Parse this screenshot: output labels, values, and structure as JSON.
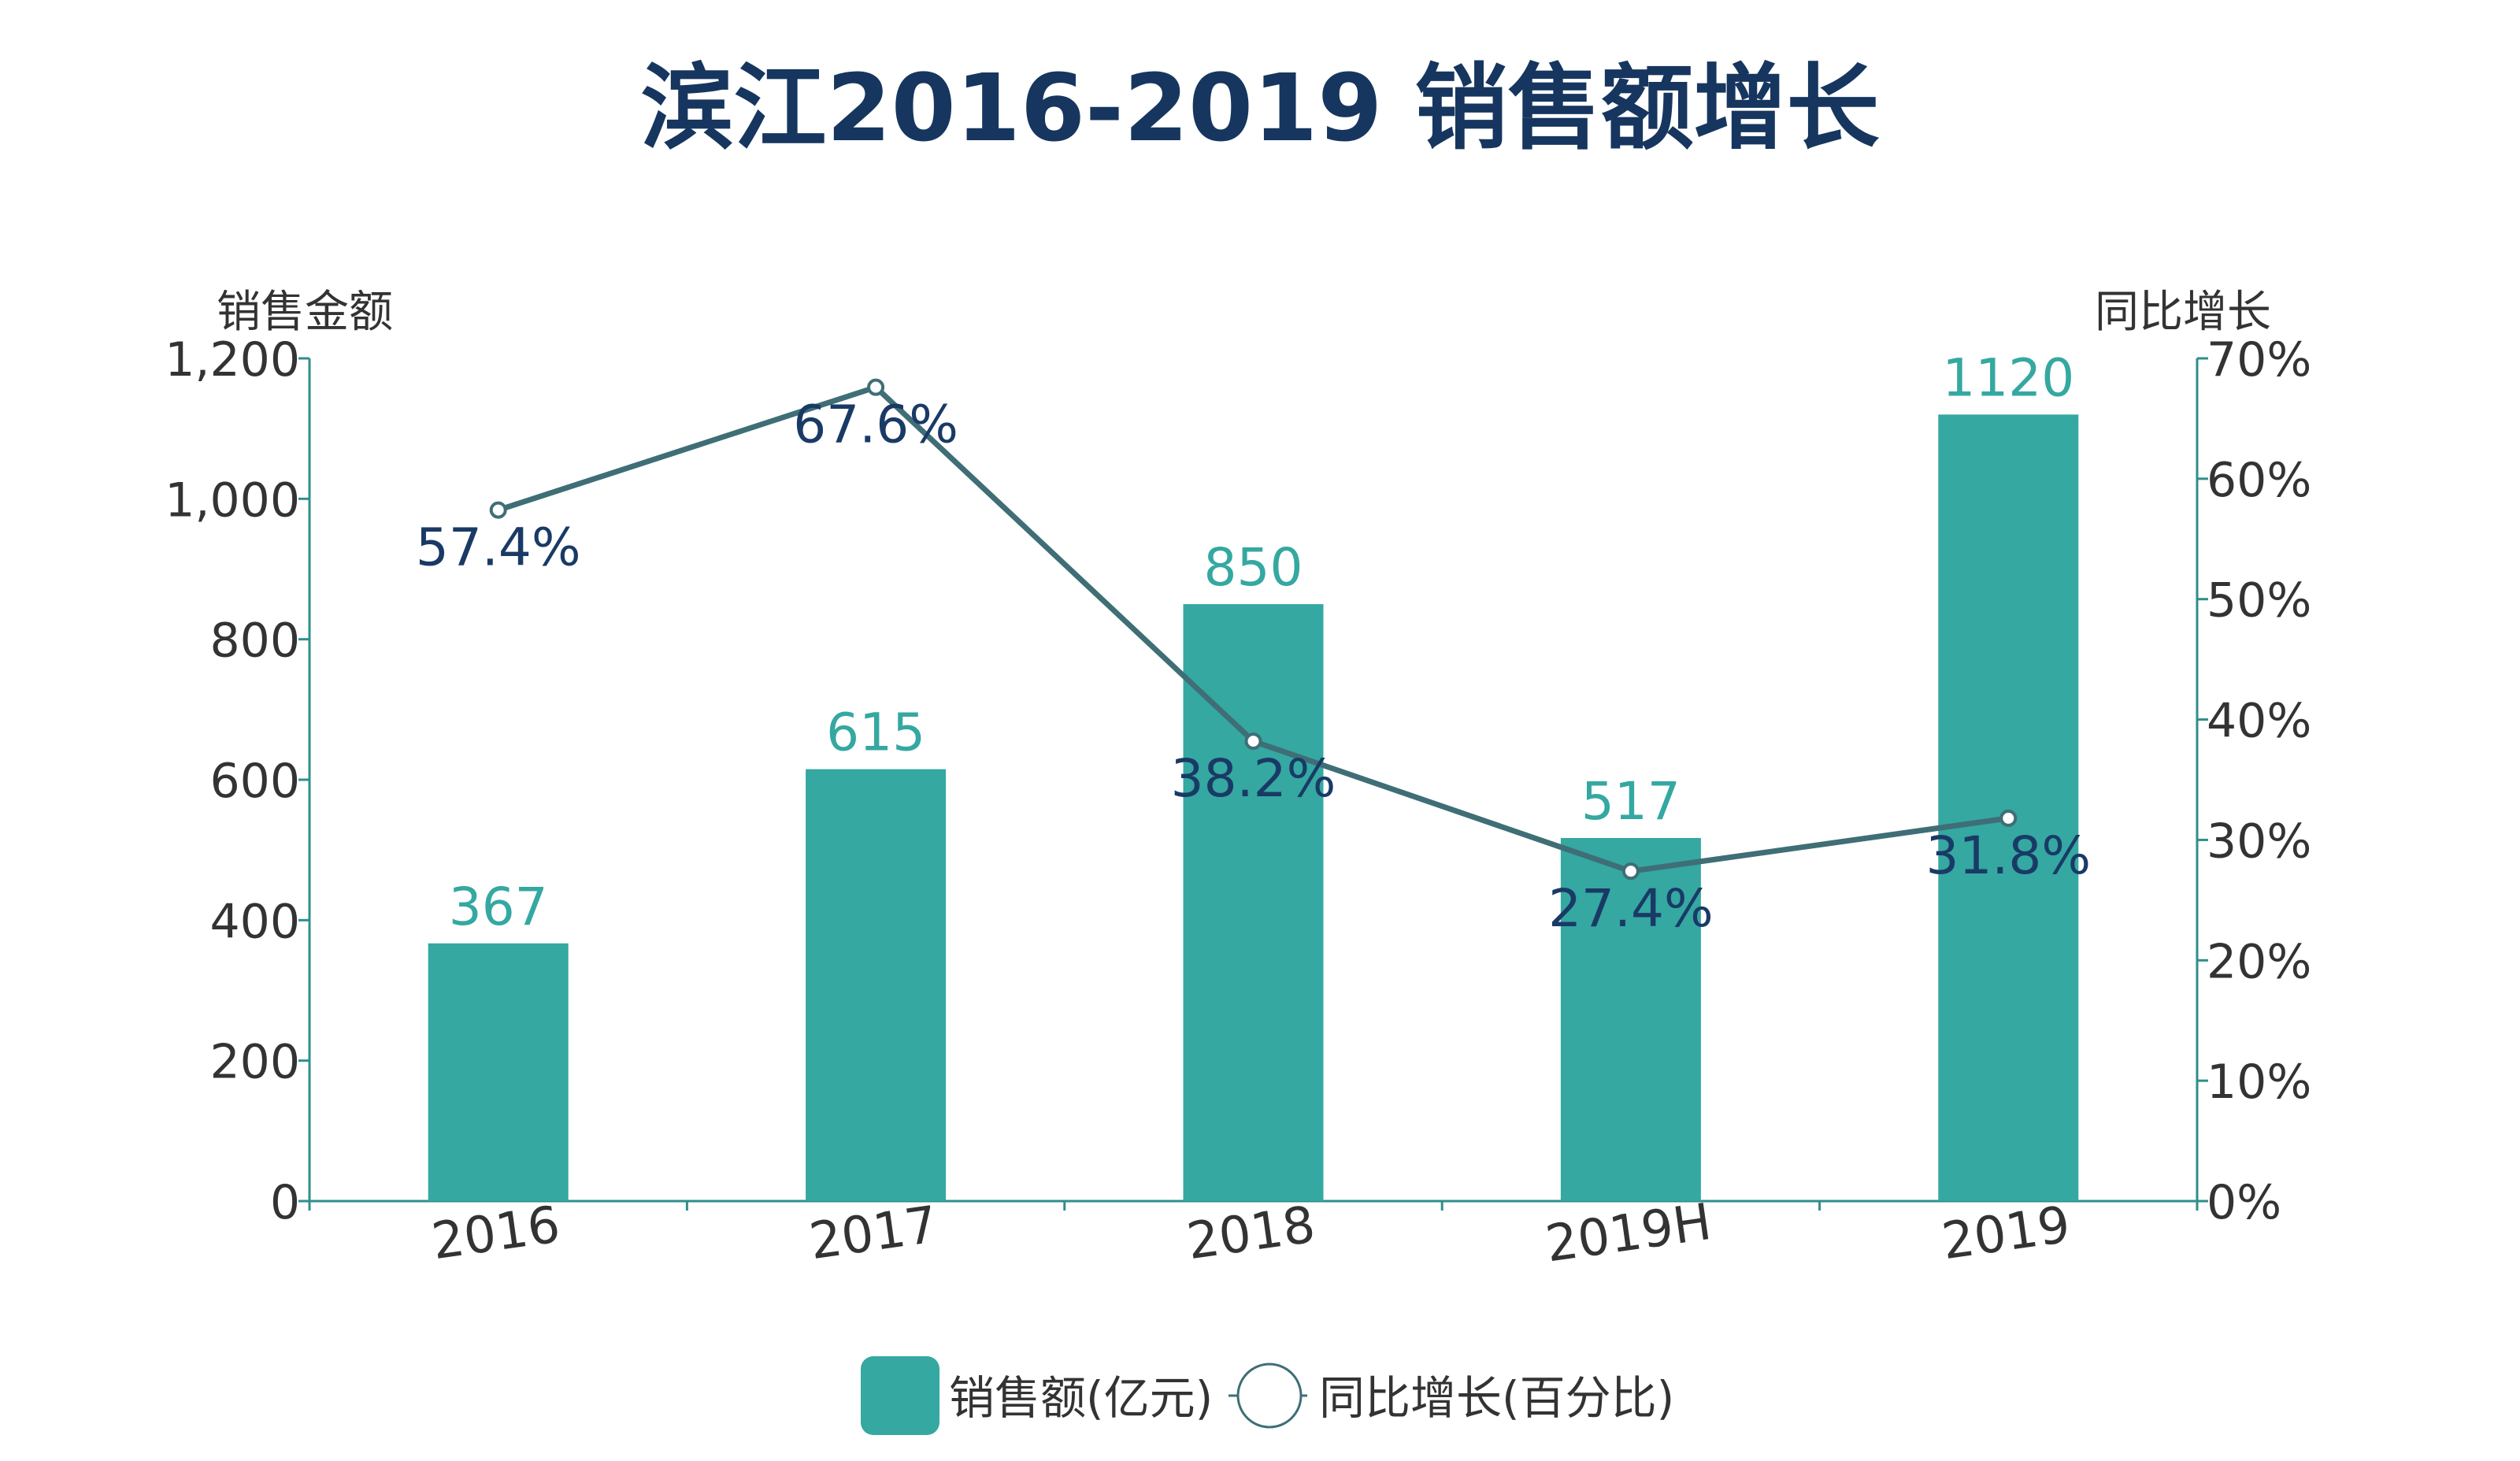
{
  "chart_data": {
    "type": "bar",
    "title": "滨江2016-2019 销售额增长",
    "categories": [
      "2016",
      "2017",
      "2018",
      "2019H",
      "2019"
    ],
    "series": [
      {
        "name": "销售额(亿元)",
        "type": "bar",
        "axis": "left",
        "values": [
          367,
          615,
          850,
          517,
          1120
        ],
        "labels": [
          "367",
          "615",
          "850",
          "517",
          "1120"
        ]
      },
      {
        "name": "同比增长(百分比)",
        "type": "line",
        "axis": "right",
        "values": [
          57.4,
          67.6,
          38.2,
          27.4,
          31.8
        ],
        "labels": [
          "57.4%",
          "67.6%",
          "38.2%",
          "27.4%",
          "31.8%"
        ]
      }
    ],
    "ylabel_left": "销售金额",
    "ylabel_right": "同比增长",
    "ylim_left": [
      0,
      1200
    ],
    "ylim_right": [
      0,
      70
    ],
    "yticks_left": [
      "0",
      "200",
      "400",
      "600",
      "800",
      "1,000",
      "1,200"
    ],
    "yticks_right": [
      "0%",
      "10%",
      "20%",
      "30%",
      "40%",
      "50%",
      "60%",
      "70%"
    ],
    "legend": [
      "销售额(亿元)",
      "同比增长(百分比)"
    ],
    "legend_position": "bottom-center",
    "colors": {
      "bar": "#34a8a1",
      "bar_label": "#34a8a1",
      "line": "#3f6e76",
      "line_label": "#1a3a66",
      "title": "#16365f",
      "axis": "#2f8f8a",
      "tick_text": "#333333"
    }
  }
}
